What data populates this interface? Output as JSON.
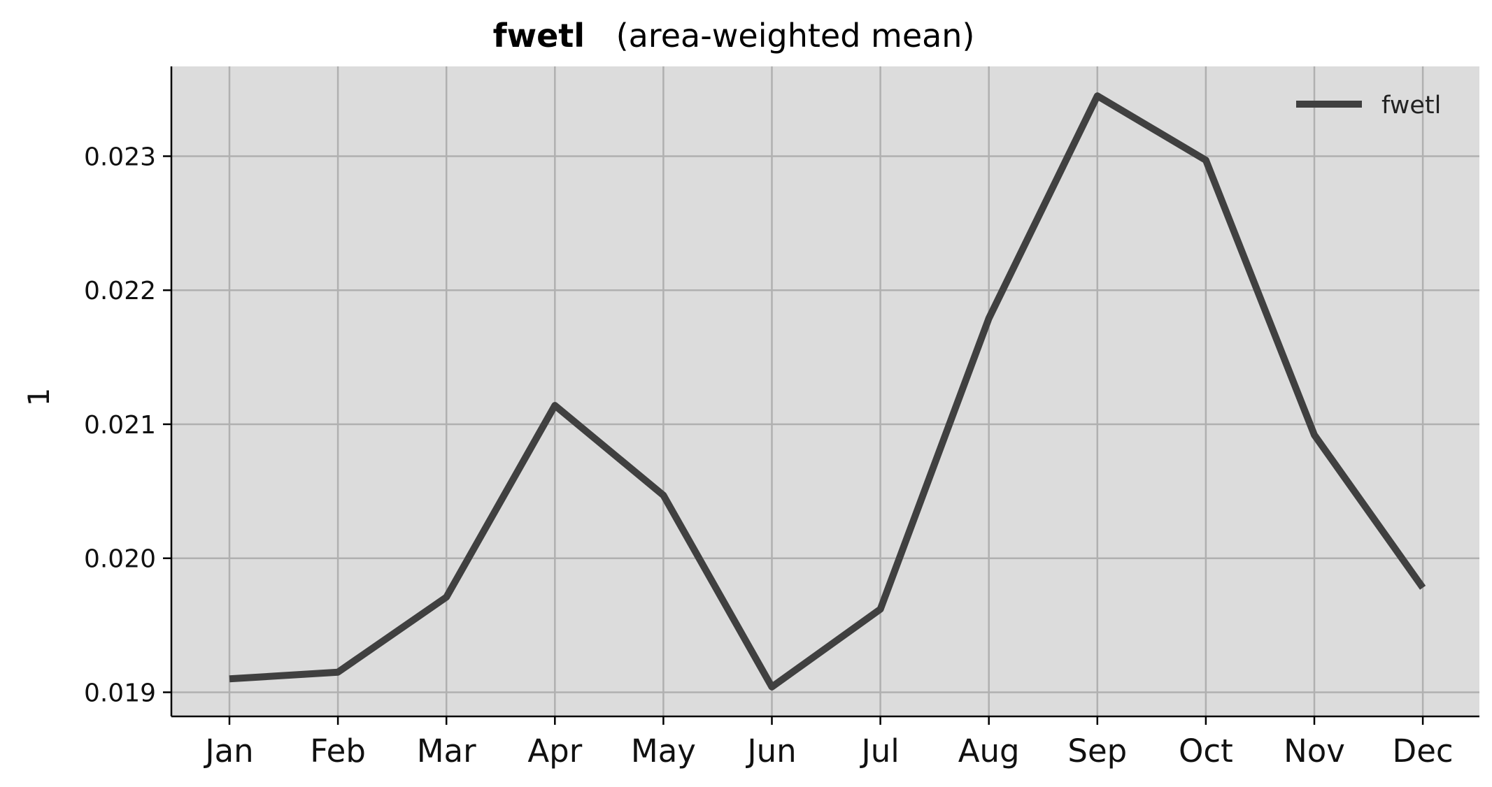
{
  "chart_data": {
    "type": "line",
    "title": "fwetl",
    "subtitle": "(area-weighted mean)",
    "xlabel": "",
    "ylabel": "1",
    "categories": [
      "Jan",
      "Feb",
      "Mar",
      "Apr",
      "May",
      "Jun",
      "Jul",
      "Aug",
      "Sep",
      "Oct",
      "Nov",
      "Dec"
    ],
    "series": [
      {
        "name": "fwetl",
        "color": "#404040",
        "values": [
          0.0191,
          0.01915,
          0.01971,
          0.02114,
          0.02047,
          0.01904,
          0.01962,
          0.02179,
          0.02345,
          0.02297,
          0.02092,
          0.01978
        ]
      }
    ],
    "yticks": [
      0.019,
      0.02,
      0.021,
      0.022,
      0.023
    ],
    "ytick_labels": [
      "0.019",
      "0.020",
      "0.021",
      "0.022",
      "0.023"
    ],
    "ylim": [
      0.01882,
      0.02367
    ],
    "grid": true,
    "background": "#dcdcdc",
    "grid_color": "#b0b0b0",
    "legend_position": "top-right"
  }
}
